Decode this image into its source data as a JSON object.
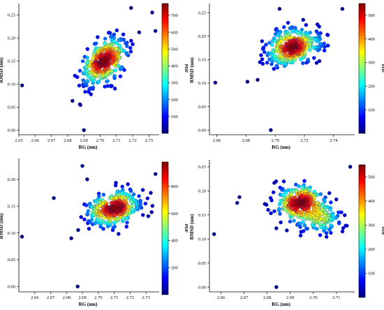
{
  "colormap": [
    "#00007f",
    "#0000ff",
    "#007fff",
    "#00ffff",
    "#7fff7f",
    "#ffff00",
    "#ff7f00",
    "#ff0000",
    "#7f0000"
  ],
  "point_outline": "#0b1a8c",
  "chart_data": [
    {
      "type": "scatter",
      "position": "top-left",
      "title": "",
      "xlabel": "RG (nm)",
      "ylabel": "RMSD (nm)",
      "colorbar_label": "PDF",
      "xlim": [
        2.65,
        2.735
      ],
      "ylim": [
        -0.01,
        0.27
      ],
      "xticks": [
        2.65,
        2.66,
        2.67,
        2.68,
        2.69,
        2.7,
        2.71,
        2.72,
        2.73
      ],
      "xtick_labels": [
        "2.65",
        "2.66",
        "2.67",
        "2.68",
        "2.69",
        "2.70",
        "2.71",
        "2.72",
        "2.73"
      ],
      "yticks": [
        0.0,
        0.05,
        0.1,
        0.15,
        0.2,
        0.25
      ],
      "ytick_labels": [
        "0.00",
        "0.05",
        "0.10",
        "0.15",
        "0.20",
        "0.25"
      ],
      "colorbar_ticks": [
        100,
        200,
        300,
        400,
        500,
        600,
        700
      ],
      "colorbar_tick_labels": [
        "100",
        "200",
        "300",
        "400",
        "500",
        "600",
        "700"
      ],
      "colorbar_range": [
        0,
        770
      ],
      "cluster": {
        "center": [
          2.7025,
          0.148
        ],
        "spread": [
          0.0075,
          0.027
        ],
        "correlation": 0.55,
        "count": 330
      },
      "outliers": [
        [
          2.652,
          0.097
        ],
        [
          2.69,
          0.0
        ],
        [
          2.719,
          0.265
        ],
        [
          2.732,
          0.255
        ],
        [
          2.734,
          0.215
        ],
        [
          2.724,
          0.212
        ]
      ]
    },
    {
      "type": "scatter",
      "position": "top-right",
      "title": "",
      "xlabel": "RG (nm)",
      "ylabel": "RMSD (nm)",
      "colorbar_label": "PDF",
      "xlim": [
        2.655,
        2.753
      ],
      "ylim": [
        -0.01,
        0.265
      ],
      "xticks": [
        2.66,
        2.68,
        2.7,
        2.72,
        2.74
      ],
      "xtick_labels": [
        "2.66",
        "2.68",
        "2.70",
        "2.72",
        "2.74"
      ],
      "yticks": [
        0.0,
        0.05,
        0.1,
        0.15,
        0.2,
        0.25
      ],
      "ytick_labels": [
        "0.00",
        "0.05",
        "0.10",
        "0.15",
        "0.20",
        "0.25"
      ],
      "colorbar_ticks": [
        100,
        200,
        300,
        400,
        500
      ],
      "colorbar_tick_labels": [
        "100",
        "200",
        "300",
        "400",
        "500"
      ],
      "colorbar_range": [
        0,
        550
      ],
      "cluster": {
        "center": [
          2.713,
          0.177
        ],
        "spread": [
          0.0095,
          0.021
        ],
        "correlation": 0.25,
        "count": 330
      },
      "outliers": [
        [
          2.659,
          0.101
        ],
        [
          2.697,
          0.0
        ],
        [
          2.746,
          0.258
        ],
        [
          2.681,
          0.103
        ],
        [
          2.688,
          0.107
        ],
        [
          2.703,
          0.258
        ]
      ]
    },
    {
      "type": "scatter",
      "position": "bottom-left",
      "title": "",
      "xlabel": "RG (nm)",
      "ylabel": "RMSD (nm)",
      "colorbar_label": "PDF",
      "xlim": [
        2.65,
        2.737
      ],
      "ylim": [
        -0.01,
        0.235
      ],
      "xticks": [
        2.66,
        2.67,
        2.68,
        2.69,
        2.7,
        2.71,
        2.72,
        2.73
      ],
      "xtick_labels": [
        "2.66",
        "2.67",
        "2.68",
        "2.69",
        "2.70",
        "2.71",
        "2.72",
        "2.73"
      ],
      "yticks": [
        0.0,
        0.05,
        0.1,
        0.15,
        0.2
      ],
      "ytick_labels": [
        "0.00",
        "0.05",
        "0.10",
        "0.15",
        "0.20"
      ],
      "colorbar_ticks": [
        200,
        400,
        600,
        800
      ],
      "colorbar_tick_labels": [
        "200",
        "400",
        "600",
        "800"
      ],
      "colorbar_range": [
        0,
        980
      ],
      "cluster": {
        "center": [
          2.709,
          0.143
        ],
        "spread": [
          0.0085,
          0.017
        ],
        "correlation": 0.25,
        "count": 330
      },
      "outliers": [
        [
          2.652,
          0.093
        ],
        [
          2.687,
          0.0
        ],
        [
          2.672,
          0.165
        ],
        [
          2.736,
          0.21
        ],
        [
          2.69,
          0.225
        ],
        [
          2.693,
          0.2
        ],
        [
          2.683,
          0.09
        ]
      ]
    },
    {
      "type": "scatter",
      "position": "bottom-right",
      "title": "",
      "xlabel": "RG (nm)",
      "ylabel": "RMSD (nm)",
      "colorbar_label": "PDF",
      "xlim": [
        2.655,
        2.717
      ],
      "ylim": [
        -0.01,
        0.26
      ],
      "xticks": [
        2.66,
        2.67,
        2.68,
        2.69,
        2.7,
        2.71
      ],
      "xtick_labels": [
        "2.66",
        "2.67",
        "2.68",
        "2.69",
        "2.70",
        "2.71"
      ],
      "yticks": [
        0.0,
        0.05,
        0.1,
        0.15,
        0.2,
        0.25
      ],
      "ytick_labels": [
        "0.00",
        "0.05",
        "0.10",
        "0.15",
        "0.20",
        "0.25"
      ],
      "colorbar_ticks": [
        100,
        200,
        300,
        400,
        500
      ],
      "colorbar_tick_labels": [
        "100",
        "200",
        "300",
        "400",
        "500"
      ],
      "colorbar_range": [
        0,
        550
      ],
      "cluster": {
        "center": [
          2.694,
          0.178
        ],
        "spread": [
          0.0055,
          0.017
        ],
        "correlation": 0.1,
        "count": 230
      },
      "cluster2": {
        "center": [
          2.702,
          0.145
        ],
        "spread": [
          0.0065,
          0.018
        ],
        "correlation": -0.1,
        "count": 150
      },
      "outliers": [
        [
          2.657,
          0.11
        ],
        [
          2.684,
          0.0
        ],
        [
          2.716,
          0.25
        ],
        [
          2.667,
          0.175
        ],
        [
          2.668,
          0.187
        ]
      ]
    }
  ]
}
